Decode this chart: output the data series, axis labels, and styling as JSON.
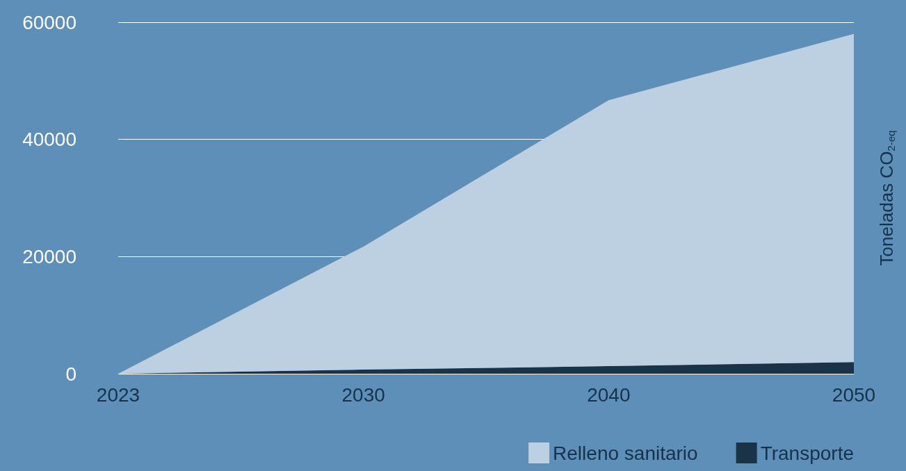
{
  "chart_data": {
    "type": "area",
    "stacked": true,
    "categories": [
      "2023",
      "2030",
      "2040",
      "2050"
    ],
    "series": [
      {
        "name": "Transporte",
        "color": "#1a3347",
        "values": [
          0,
          700,
          1300,
          2000
        ]
      },
      {
        "name": "Relleno sanitario",
        "color": "#bcd0e2",
        "values": [
          0,
          21000,
          45400,
          56000
        ]
      }
    ],
    "ylabel": "Toneladas CO$_{2-eq}$",
    "ylim": [
      0,
      60000
    ],
    "yticks": [
      0,
      20000,
      40000,
      60000
    ],
    "grid": "y",
    "legend": "bottom right"
  }
}
